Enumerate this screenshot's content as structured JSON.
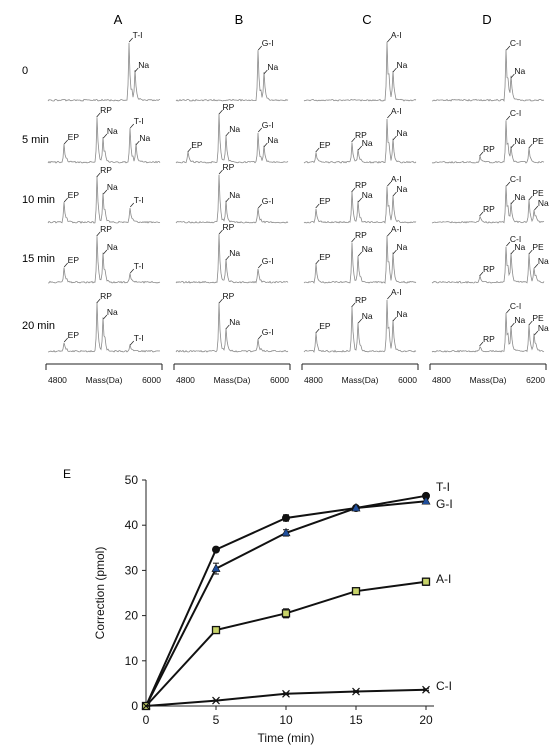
{
  "figure": {
    "columns": [
      "A",
      "B",
      "C",
      "D"
    ],
    "rows": [
      "0",
      "5 min",
      "10 min",
      "15 min",
      "20 min"
    ],
    "spectra_axis_label": "Mass(Da)",
    "spectra_ticks": [
      [
        "4800",
        "6000"
      ],
      [
        "4800",
        "6000"
      ],
      [
        "4800",
        "6000"
      ],
      [
        "4800",
        "6200"
      ]
    ],
    "panel_e_label": "E"
  },
  "colors": {
    "trace": "#8a8a8a",
    "axis": "#222222",
    "T-I": "#111111",
    "G-I": "#1f4e9c",
    "A-I": "#c8d46a",
    "C-I": "#333333"
  },
  "spectra": [
    {
      "column": "A",
      "peaks": [
        [
          "T-I",
          "Na"
        ],
        [
          "EP",
          "RP",
          "Na",
          "T-I",
          "Na"
        ],
        [
          "EP",
          "RP",
          "Na",
          "T-I"
        ],
        [
          "RP",
          "Na",
          "EP",
          "T-I"
        ],
        [
          "RP",
          "Na",
          "EP",
          "T-I"
        ]
      ]
    },
    {
      "column": "B",
      "peaks": [
        [
          "G-I",
          "Na"
        ],
        [
          "RP",
          "Na",
          "EP",
          "G-I",
          "Na"
        ],
        [
          "RP",
          "Na",
          "G-I"
        ],
        [
          "RP",
          "Na",
          "G-I"
        ],
        [
          "RP",
          "Na",
          "G-I"
        ]
      ]
    },
    {
      "column": "C",
      "peaks": [
        [
          "A-I",
          "Na"
        ],
        [
          "EP",
          "RP",
          "Na",
          "A-I",
          "Na"
        ],
        [
          "EP",
          "RP",
          "Na",
          "A-I",
          "Na"
        ],
        [
          "EP",
          "RP",
          "Na",
          "A-I",
          "Na"
        ],
        [
          "EP",
          "RP",
          "Na",
          "A-I",
          "Na"
        ]
      ]
    },
    {
      "column": "D",
      "peaks": [
        [
          "C-I",
          "Na"
        ],
        [
          "C-I",
          "RP",
          "Na",
          "PE"
        ],
        [
          "C-I",
          "RP",
          "Na",
          "PE",
          "Na"
        ],
        [
          "C-I",
          "RP",
          "Na",
          "PE",
          "Na"
        ],
        [
          "C-I",
          "RP",
          "Na",
          "PE",
          "Na"
        ]
      ]
    }
  ],
  "chart_data": {
    "type": "line",
    "xlabel": "Time (min)",
    "ylabel": "Correction (pmol)",
    "x": [
      0,
      5,
      10,
      15,
      20
    ],
    "xlim": [
      0,
      20
    ],
    "ylim": [
      0,
      50
    ],
    "xticks": [
      0,
      5,
      10,
      15,
      20
    ],
    "yticks": [
      0,
      10,
      20,
      30,
      40,
      50
    ],
    "grid": false,
    "series": [
      {
        "name": "T-I",
        "values": [
          0,
          34.6,
          41.6,
          43.8,
          46.5
        ],
        "errors": [
          0,
          0.5,
          0.7,
          0.4,
          0.5
        ],
        "marker": "circle"
      },
      {
        "name": "G-I",
        "values": [
          0,
          30.4,
          38.3,
          43.8,
          45.3
        ],
        "errors": [
          0,
          1.2,
          0.7,
          0.3,
          0.5
        ],
        "marker": "triangle"
      },
      {
        "name": "A-I",
        "values": [
          0,
          16.8,
          20.5,
          25.4,
          27.5
        ],
        "errors": [
          0,
          0.5,
          1.0,
          0.5,
          0.8
        ],
        "marker": "square"
      },
      {
        "name": "C-I",
        "values": [
          0,
          1.2,
          2.7,
          3.2,
          3.6
        ],
        "errors": [
          0,
          0.1,
          0.2,
          0.2,
          0.2
        ],
        "marker": "cross"
      }
    ]
  }
}
